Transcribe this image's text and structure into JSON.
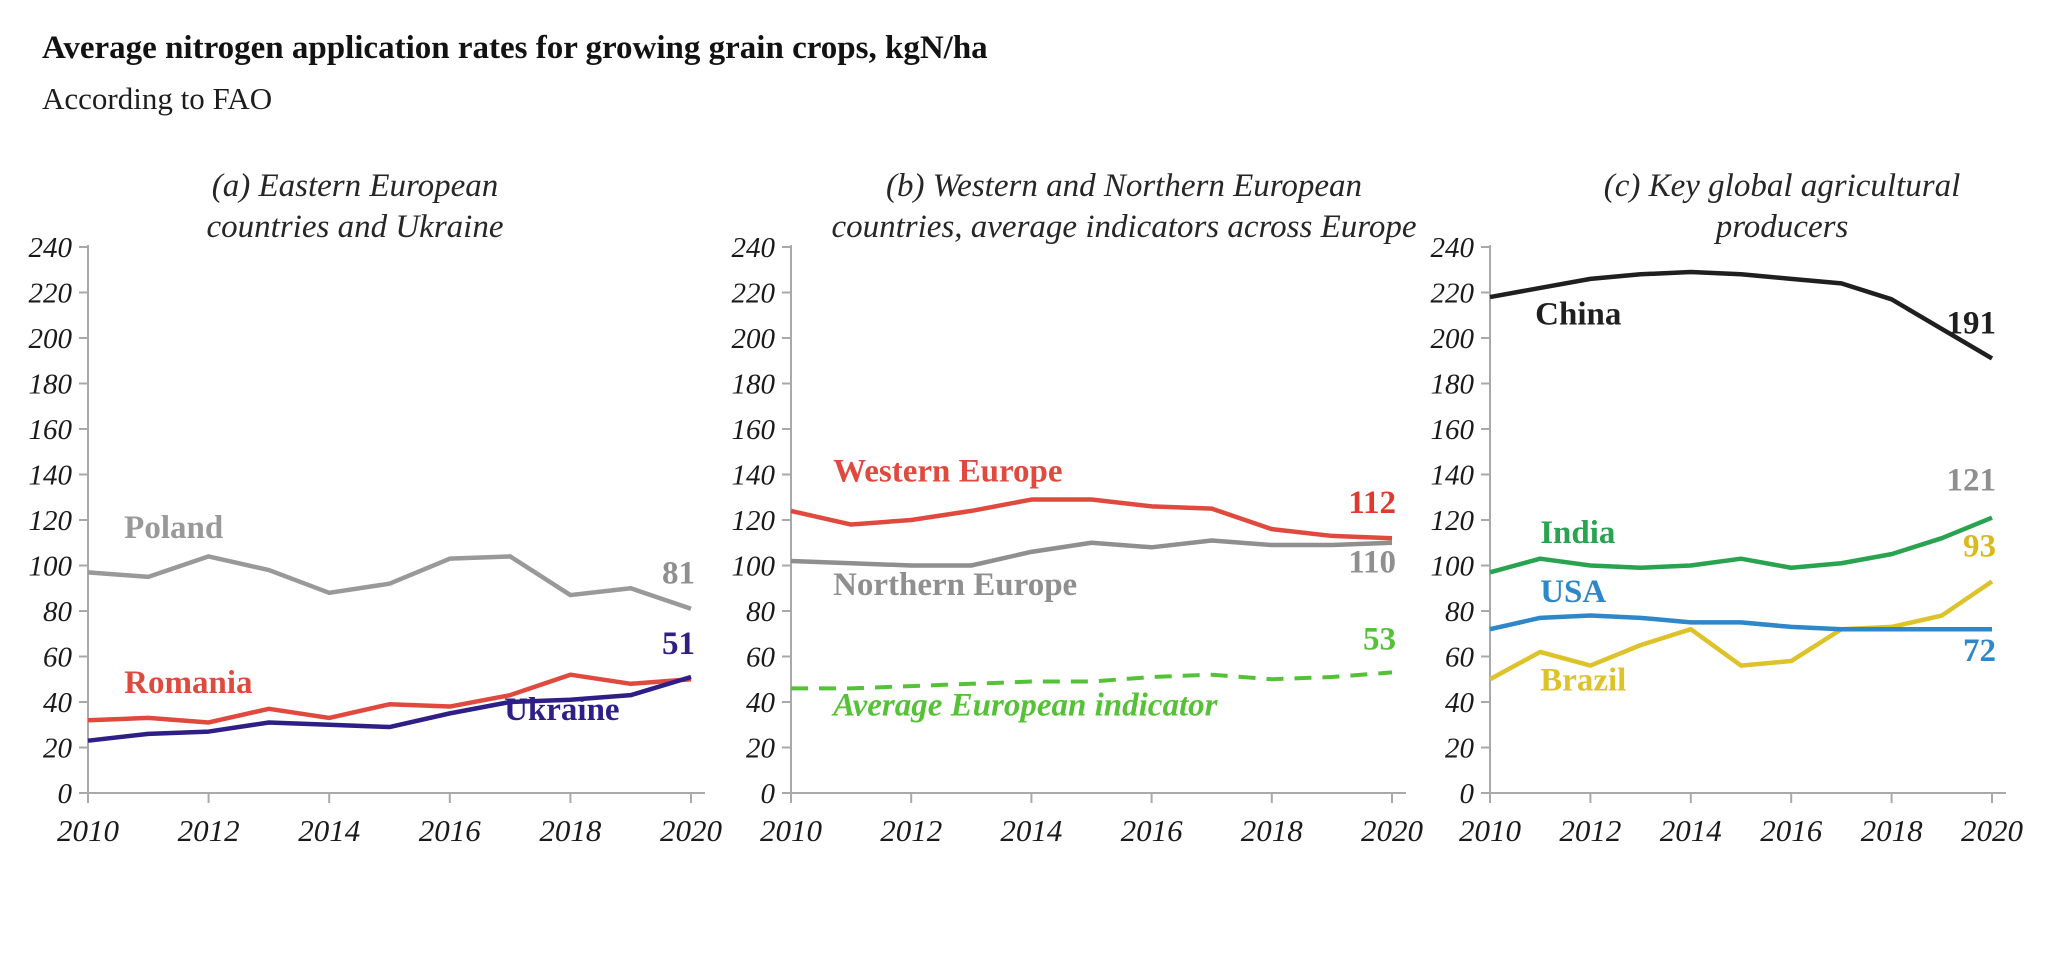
{
  "page": {
    "title": "Average nitrogen application rates for growing grain crops, kgN/ha",
    "subtitle": "According to FAO"
  },
  "chart_data": [
    {
      "id": "a",
      "type": "line",
      "title_line1": "(a) Eastern European",
      "title_line2": "countries and Ukraine",
      "x": [
        2010,
        2011,
        2012,
        2013,
        2014,
        2015,
        2016,
        2017,
        2018,
        2019,
        2020
      ],
      "x_ticks": [
        2010,
        2012,
        2014,
        2016,
        2018,
        2020
      ],
      "y_ticks": [
        0,
        20,
        40,
        60,
        80,
        100,
        120,
        140,
        160,
        180,
        200,
        220,
        240
      ],
      "ylim": [
        0,
        240
      ],
      "grid": false,
      "series": [
        {
          "name": "Poland",
          "color": "#999999",
          "values": [
            97,
            95,
            104,
            98,
            88,
            92,
            103,
            104,
            87,
            90,
            81
          ],
          "name_label": {
            "x": 2010.6,
            "y": 112
          },
          "end_label": {
            "text": "81",
            "x": 2020,
            "y": 92,
            "color": "#8f8f8f"
          }
        },
        {
          "name": "Romania",
          "color": "#e04a3e",
          "values": [
            32,
            33,
            31,
            37,
            33,
            39,
            38,
            43,
            52,
            48,
            50
          ],
          "name_label": {
            "x": 2010.6,
            "y": 44
          }
        },
        {
          "name": "Ukraine",
          "color": "#2e1f87",
          "values": [
            23,
            26,
            27,
            31,
            30,
            29,
            35,
            40,
            41,
            43,
            51
          ],
          "name_label": {
            "x": 2016.9,
            "y": 32
          },
          "end_label": {
            "text": "51",
            "x": 2020,
            "y": 61,
            "color": "#2e1f87"
          }
        }
      ]
    },
    {
      "id": "b",
      "type": "line",
      "title_line1": "(b) Western and Northern European",
      "title_line2": "countries, average indicators across Europe",
      "x": [
        2010,
        2011,
        2012,
        2013,
        2014,
        2015,
        2016,
        2017,
        2018,
        2019,
        2020
      ],
      "x_ticks": [
        2010,
        2012,
        2014,
        2016,
        2018,
        2020
      ],
      "y_ticks": [
        0,
        20,
        40,
        60,
        80,
        100,
        120,
        140,
        160,
        180,
        200,
        220,
        240
      ],
      "ylim": [
        0,
        240
      ],
      "grid": false,
      "series": [
        {
          "name": "Western Europe",
          "color": "#e04a3e",
          "values": [
            124,
            118,
            120,
            124,
            129,
            129,
            126,
            125,
            116,
            113,
            112
          ],
          "name_label": {
            "x": 2010.7,
            "y": 137
          },
          "end_label": {
            "text": "112",
            "x": 2020,
            "y": 123,
            "color": "#e0392e"
          }
        },
        {
          "name": "Northern Europe",
          "color": "#8f8f8f",
          "values": [
            102,
            101,
            100,
            100,
            106,
            110,
            108,
            111,
            109,
            109,
            110
          ],
          "name_label": {
            "x": 2010.7,
            "y": 87
          },
          "end_label": {
            "text": "110",
            "x": 2020,
            "y": 97,
            "color": "#8f8f8f"
          }
        },
        {
          "name": "Average European indicator",
          "color": "#55c136",
          "dashed": true,
          "values": [
            46,
            46,
            47,
            48,
            49,
            49,
            51,
            52,
            50,
            51,
            53
          ],
          "name_label": {
            "x": 2010.7,
            "y": 34,
            "italic": true
          },
          "end_label": {
            "text": "53",
            "x": 2020,
            "y": 63,
            "color": "#55c136"
          }
        }
      ]
    },
    {
      "id": "c",
      "type": "line",
      "title_line1": "(c) Key global agricultural",
      "title_line2": "producers",
      "x": [
        2010,
        2011,
        2012,
        2013,
        2014,
        2015,
        2016,
        2017,
        2018,
        2019,
        2020
      ],
      "x_ticks": [
        2010,
        2012,
        2014,
        2016,
        2018,
        2020
      ],
      "y_ticks": [
        0,
        20,
        40,
        60,
        80,
        100,
        120,
        140,
        160,
        180,
        200,
        220,
        240
      ],
      "ylim": [
        0,
        240
      ],
      "grid": false,
      "series": [
        {
          "name": "China",
          "color": "#1f1f1f",
          "values": [
            218,
            222,
            226,
            228,
            229,
            228,
            226,
            224,
            217,
            204,
            191
          ],
          "name_label": {
            "x": 2010.9,
            "y": 206
          },
          "end_label": {
            "text": "191",
            "x": 2020,
            "y": 202,
            "color": "#1f1f1f"
          }
        },
        {
          "name": "India",
          "color": "#2aa350",
          "values": [
            97,
            103,
            100,
            99,
            100,
            103,
            99,
            101,
            105,
            112,
            121
          ],
          "name_label": {
            "x": 2011,
            "y": 110
          },
          "end_label": {
            "text": "121",
            "x": 2020,
            "y": 133,
            "color": "#8f8f8f"
          }
        },
        {
          "name": "Brazil",
          "color": "#ddc22a",
          "values": [
            50,
            62,
            56,
            65,
            72,
            56,
            58,
            72,
            73,
            78,
            93
          ],
          "name_label": {
            "x": 2011,
            "y": 45
          },
          "end_label": {
            "text": "93",
            "x": 2020,
            "y": 104,
            "color": "#d9b91c"
          }
        },
        {
          "name": "USA",
          "color": "#2e87c8",
          "values": [
            72,
            77,
            78,
            77,
            75,
            75,
            73,
            72,
            72,
            72,
            72
          ],
          "name_label": {
            "x": 2011,
            "y": 84
          },
          "end_label": {
            "text": "72",
            "x": 2020,
            "y": 58,
            "color": "#2e87c8"
          }
        }
      ]
    }
  ]
}
